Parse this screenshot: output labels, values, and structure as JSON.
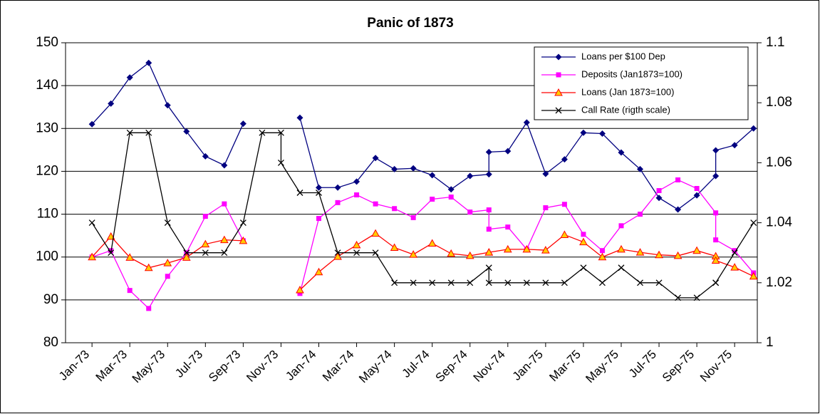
{
  "chart_data": {
    "type": "line",
    "title": "Panic of 1873",
    "x": [
      0,
      1,
      2,
      3,
      4,
      5,
      6,
      7,
      8,
      9,
      10,
      10,
      11,
      12,
      13,
      14,
      15,
      16,
      17,
      18,
      19,
      20,
      21,
      21,
      22,
      23,
      24,
      25,
      26,
      27,
      28,
      29,
      30,
      31,
      32,
      33,
      33,
      34,
      35
    ],
    "xlim": [
      -1.4,
      35.2
    ],
    "xticks": [
      {
        "value": 0,
        "label": "Jan-73"
      },
      {
        "value": 2,
        "label": "Mar-73"
      },
      {
        "value": 4,
        "label": "May-73"
      },
      {
        "value": 6,
        "label": "Jul-73"
      },
      {
        "value": 8,
        "label": "Sep-73"
      },
      {
        "value": 10,
        "label": "Nov-73"
      },
      {
        "value": 12,
        "label": "Jan-74"
      },
      {
        "value": 14,
        "label": "Mar-74"
      },
      {
        "value": 16,
        "label": "May-74"
      },
      {
        "value": 18,
        "label": "Jul-74"
      },
      {
        "value": 20,
        "label": "Sep-74"
      },
      {
        "value": 22,
        "label": "Nov-74"
      },
      {
        "value": 24,
        "label": "Jan-75"
      },
      {
        "value": 26,
        "label": "Mar-75"
      },
      {
        "value": 28,
        "label": "May-75"
      },
      {
        "value": 30,
        "label": "Jul-75"
      },
      {
        "value": 32,
        "label": "Sep-75"
      },
      {
        "value": 34,
        "label": "Nov-75"
      }
    ],
    "ylim": [
      80,
      150
    ],
    "yticks": [
      80,
      90,
      100,
      110,
      120,
      130,
      140,
      150
    ],
    "y2lim": [
      1,
      1.1
    ],
    "y2ticks": [
      1,
      1.02,
      1.04,
      1.06,
      1.08,
      1.1
    ],
    "grid": true,
    "legend": "top-right",
    "series": [
      {
        "name": "Loans per $100 Dep",
        "color": "#000080",
        "marker": "diamond",
        "values": [
          131,
          135.8,
          141.9,
          145.3,
          135.4,
          129.3,
          123.5,
          121.4,
          131.1,
          null,
          null,
          null,
          132.5,
          116.2,
          116.2,
          117.6,
          123.1,
          120.5,
          120.7,
          119.1,
          115.8,
          118.9,
          119.3,
          124.5,
          124.7,
          131.4,
          119.4,
          122.8,
          129,
          128.8,
          124.4,
          120.5,
          113.8,
          111.1,
          114.4,
          118.9,
          124.9,
          126.1,
          130
        ]
      },
      {
        "name": "Deposits (Jan1873=100)",
        "color": "#ff00ff",
        "marker": "square",
        "values": [
          100,
          101.5,
          92.2,
          88,
          95.5,
          101,
          109.5,
          112.4,
          103.8,
          null,
          null,
          null,
          91.5,
          109,
          112.7,
          114.5,
          112.4,
          111.3,
          109.2,
          113.5,
          114,
          110.5,
          111,
          106.5,
          107,
          101.8,
          111.5,
          112.3,
          105.3,
          101.5,
          107.3,
          110,
          115.5,
          118,
          116,
          110.3,
          104,
          101.5,
          96.3
        ]
      },
      {
        "name": "Loans (Jan 1873=100)",
        "color": "#ff0000",
        "marker": "triangle",
        "values": [
          100,
          104.8,
          99.9,
          97.5,
          98.6,
          99.9,
          103,
          104,
          103.8,
          null,
          null,
          null,
          92.3,
          96.5,
          100.1,
          102.8,
          105.5,
          102.2,
          100.6,
          103.2,
          100.8,
          100.3,
          101.1,
          101.1,
          101.8,
          101.8,
          101.6,
          105.2,
          103.5,
          100,
          101.8,
          101.1,
          100.5,
          100.3,
          101.5,
          100.2,
          99.2,
          97.6,
          95.5
        ]
      },
      {
        "name": "Call Rate (rigth scale)",
        "color": "#000000",
        "marker": "cross",
        "axis": "y2",
        "values": [
          1.04,
          1.03,
          1.07,
          1.07,
          1.04,
          1.03,
          1.03,
          1.03,
          1.04,
          1.07,
          1.07,
          1.06,
          1.05,
          1.05,
          1.03,
          1.03,
          1.03,
          1.02,
          1.02,
          1.02,
          1.02,
          1.02,
          1.025,
          1.02,
          1.02,
          1.02,
          1.02,
          1.02,
          1.025,
          1.02,
          1.025,
          1.02,
          1.02,
          1.015,
          1.015,
          1.02,
          1.02,
          1.03,
          1.04
        ]
      }
    ]
  }
}
